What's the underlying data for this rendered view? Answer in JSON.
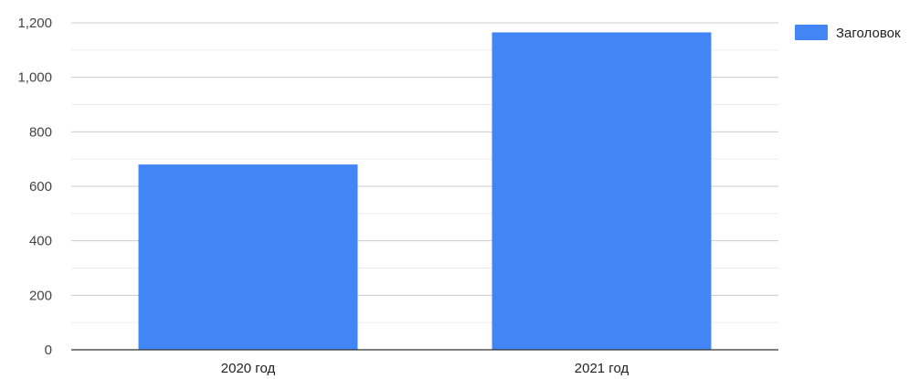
{
  "chart_data": {
    "type": "bar",
    "categories": [
      "2020 год",
      "2021 год"
    ],
    "series": [
      {
        "name": "Заголовок",
        "values": [
          680,
          1165
        ],
        "color": "#4285f4"
      }
    ],
    "ylim": [
      0,
      1200
    ],
    "yticks": [
      0,
      200,
      400,
      600,
      800,
      1000,
      1200
    ],
    "ytick_labels": [
      "0",
      "200",
      "400",
      "600",
      "800",
      "1,000",
      "1,200"
    ],
    "grid": true,
    "legend_position": "right"
  }
}
